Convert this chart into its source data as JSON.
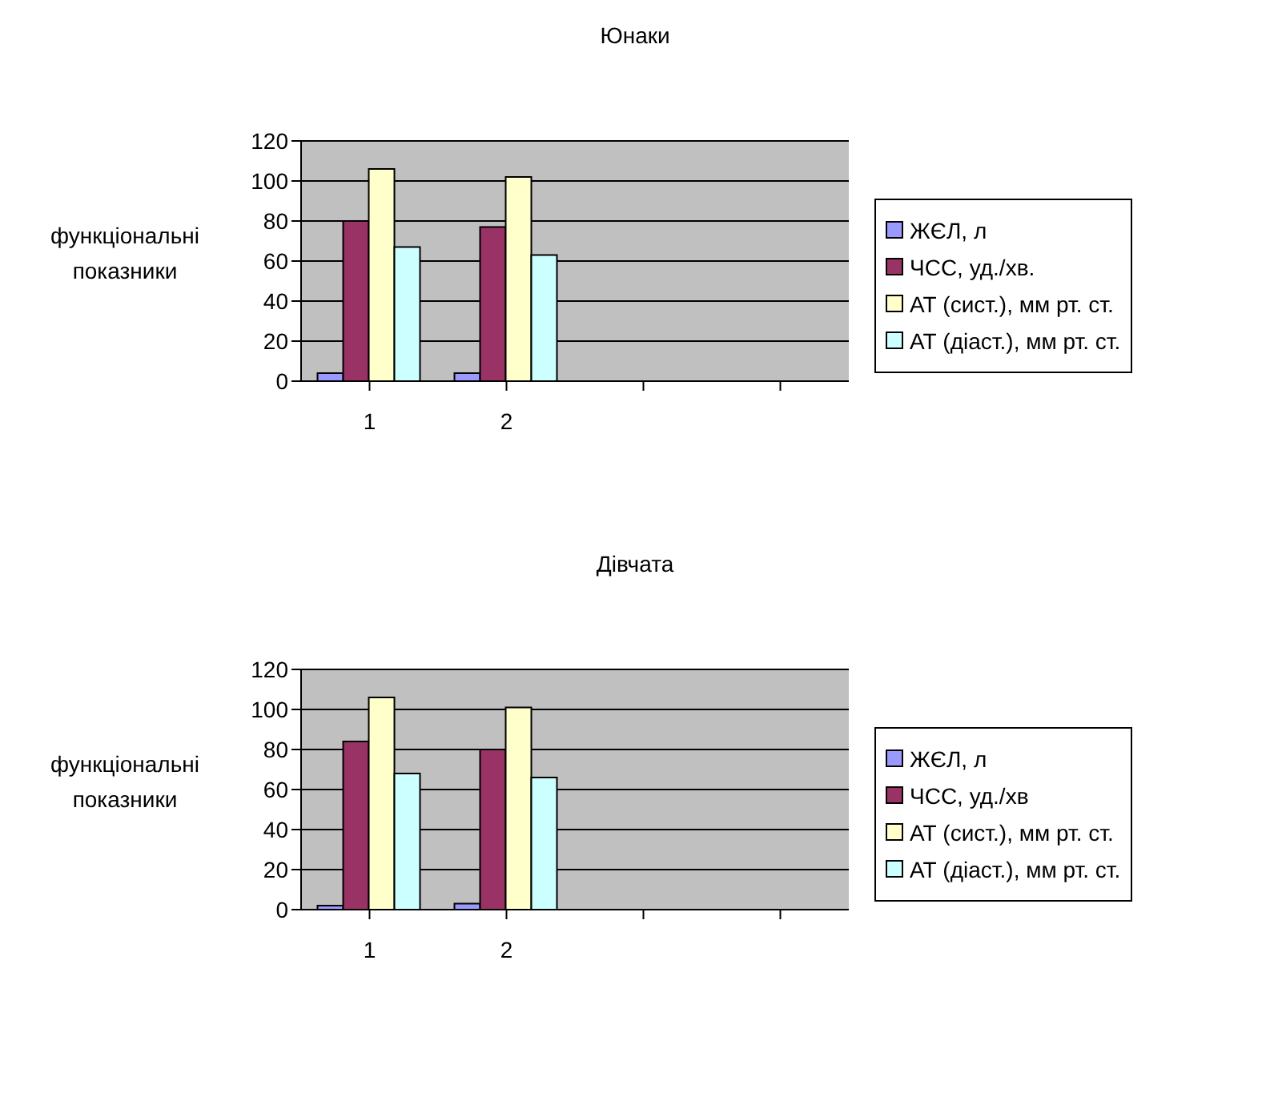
{
  "chart_data": [
    {
      "type": "bar",
      "title": "Юнаки",
      "ylabel": "функціональні показники",
      "categories": [
        "1",
        "2",
        null,
        null
      ],
      "ylim": [
        0,
        120
      ],
      "yticks": [
        0,
        20,
        40,
        60,
        80,
        100,
        120
      ],
      "grid": "y",
      "legend": "right",
      "series": [
        {
          "name": "ЖЄЛ, л",
          "color": "#9999ff",
          "values": [
            4,
            4,
            null,
            null
          ]
        },
        {
          "name": "ЧСС, уд./хв.",
          "color": "#993366",
          "values": [
            80,
            77,
            null,
            null
          ]
        },
        {
          "name": "АТ (сист.), мм рт. ст.",
          "color": "#ffffcc",
          "values": [
            106,
            102,
            null,
            null
          ]
        },
        {
          "name": "АТ (діаст.), мм рт. ст.",
          "color": "#ccffff",
          "values": [
            67,
            63,
            null,
            null
          ]
        }
      ]
    },
    {
      "type": "bar",
      "title": "Дівчата",
      "ylabel": "функціональні показники",
      "categories": [
        "1",
        "2",
        null,
        null
      ],
      "ylim": [
        0,
        120
      ],
      "yticks": [
        0,
        20,
        40,
        60,
        80,
        100,
        120
      ],
      "grid": "y",
      "legend": "right",
      "series": [
        {
          "name": "ЖЄЛ, л",
          "color": "#9999ff",
          "values": [
            2,
            3,
            null,
            null
          ]
        },
        {
          "name": "ЧСС, уд./хв",
          "color": "#993366",
          "values": [
            84,
            80,
            null,
            null
          ]
        },
        {
          "name": "АТ (сист.), мм рт. ст.",
          "color": "#ffffcc",
          "values": [
            106,
            101,
            null,
            null
          ]
        },
        {
          "name": "АТ (діаст.), мм рт. ст.",
          "color": "#ccffff",
          "values": [
            68,
            66,
            null,
            null
          ]
        }
      ]
    }
  ]
}
